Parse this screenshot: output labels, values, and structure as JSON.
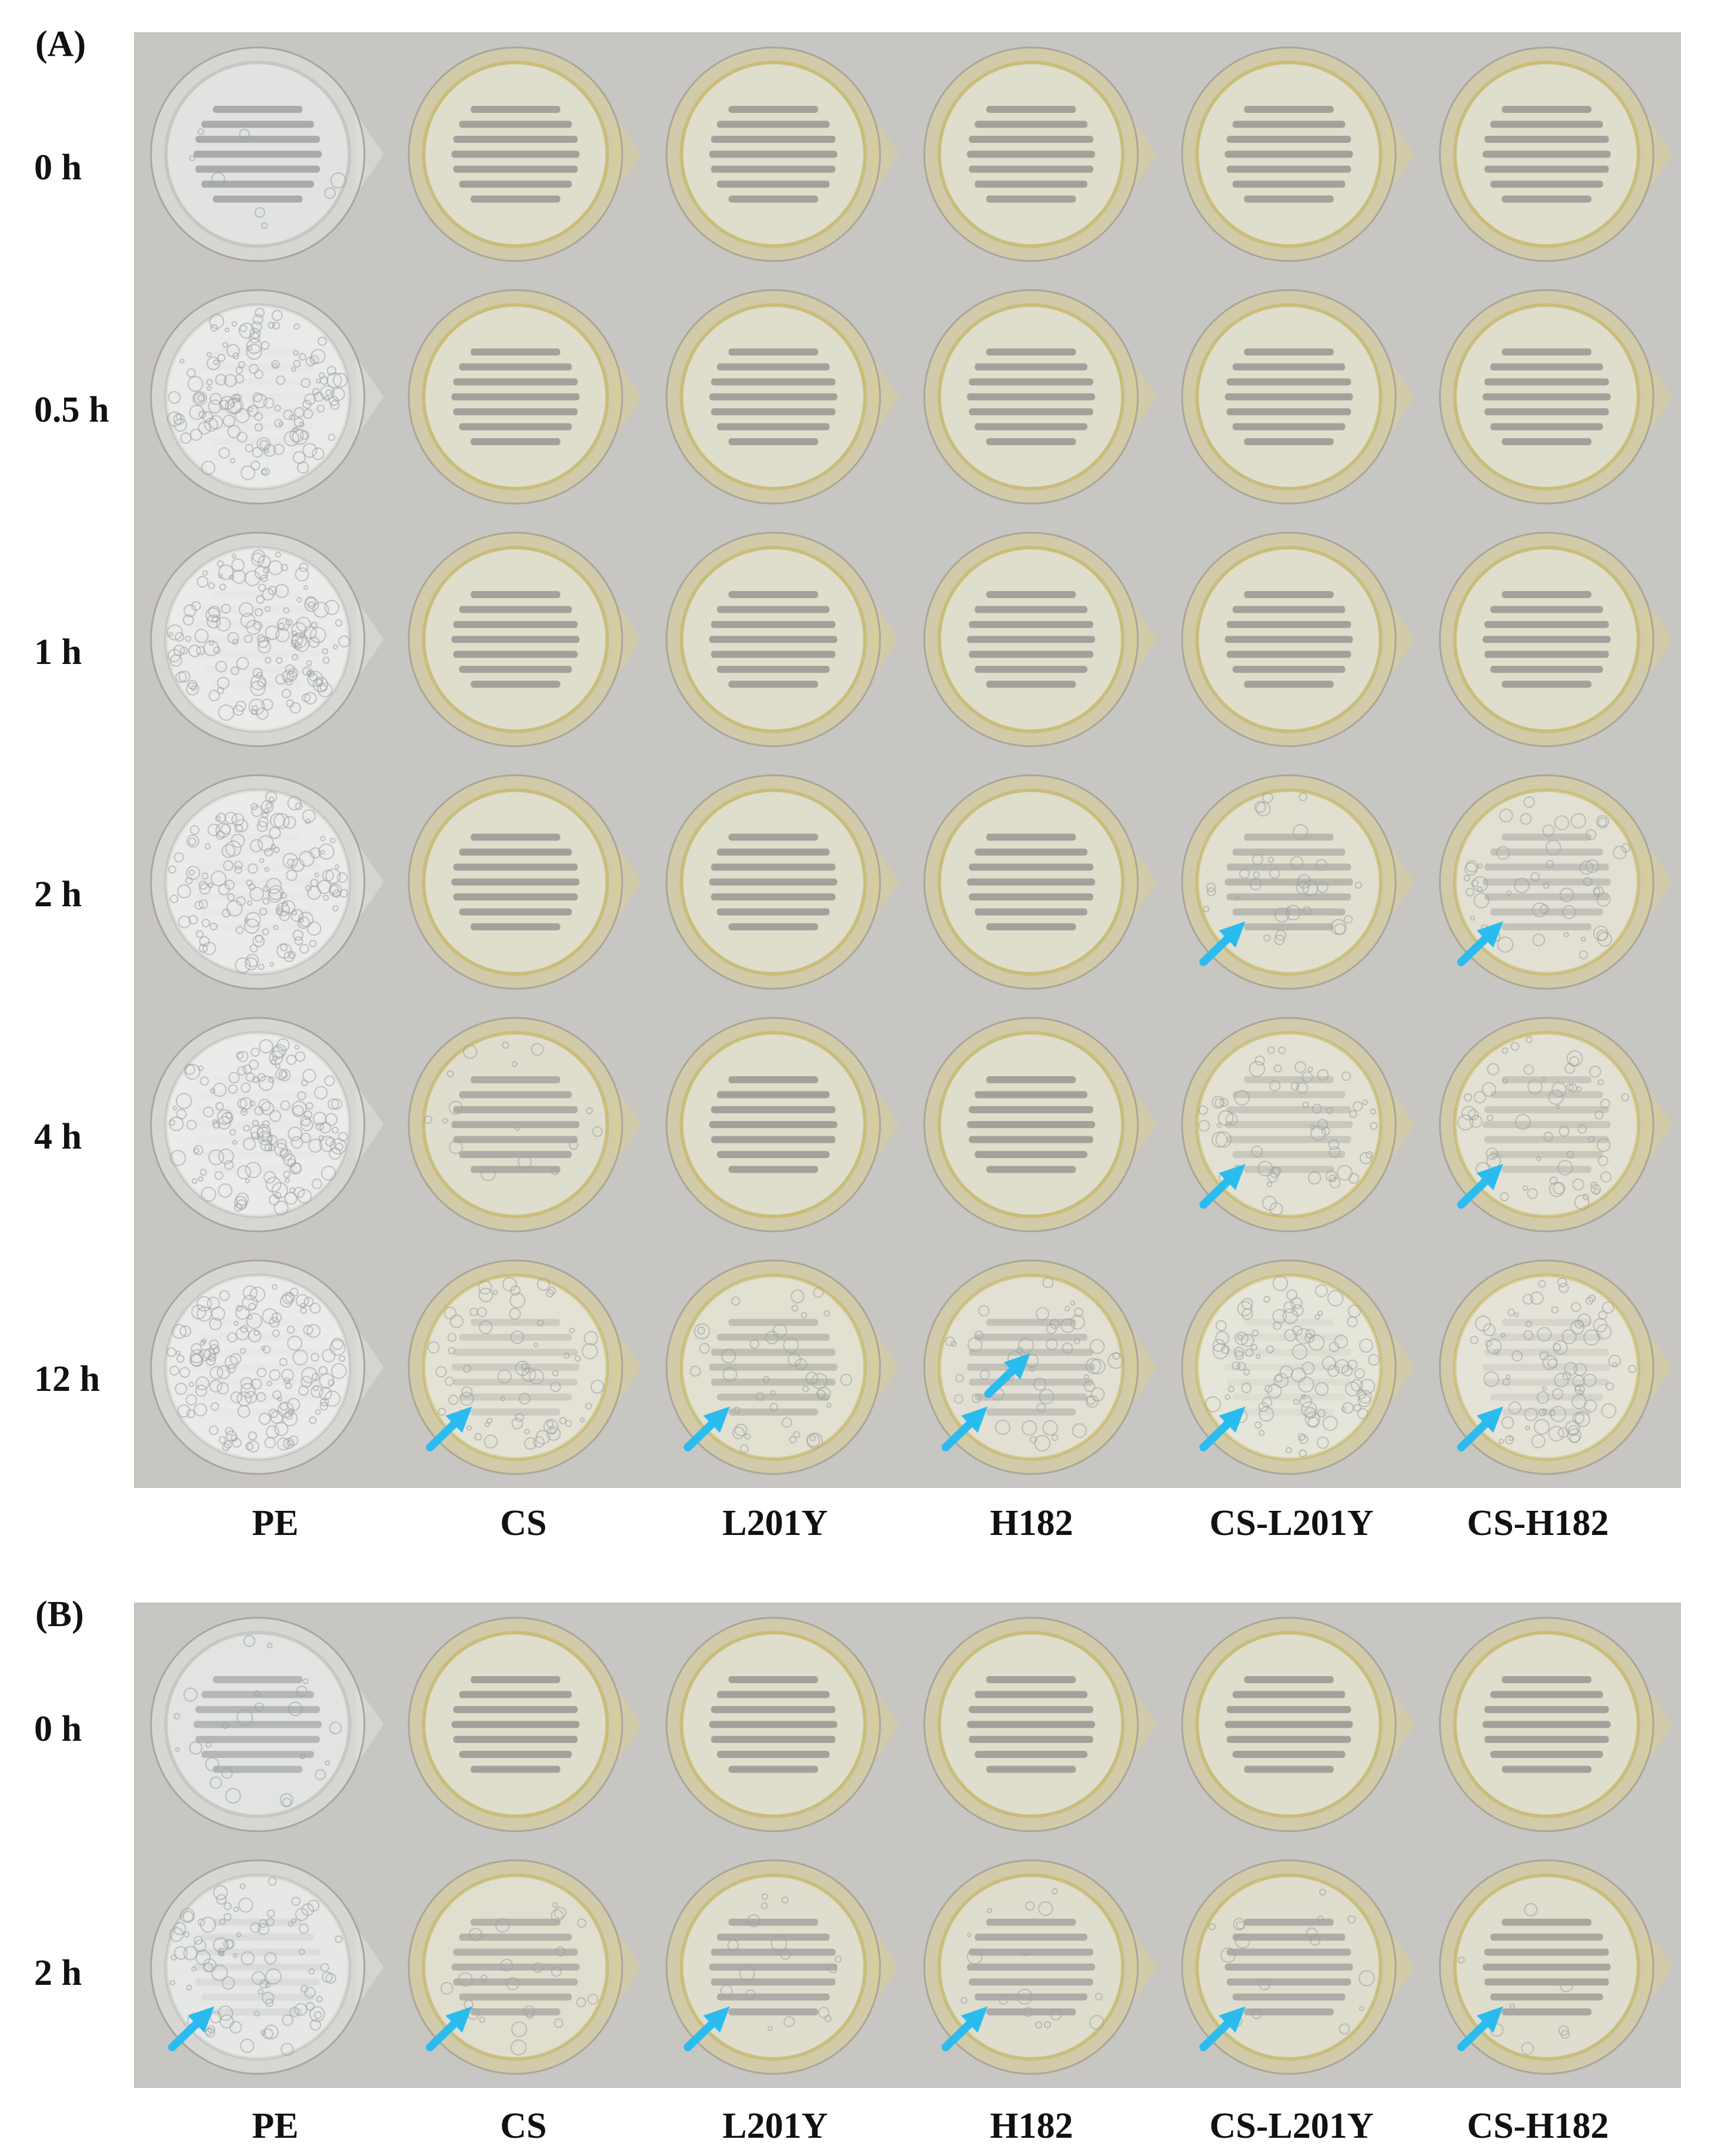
{
  "colors": {
    "background": "#c8c6c2",
    "film_edge_clear": "#dfe2de",
    "film_edge_yellow": "#d9cf97",
    "arrow": "#2bbcef",
    "label_text": "#111111"
  },
  "panels": [
    {
      "label": "(A)",
      "rows": [
        {
          "time": "0 h",
          "fog": [
            0.05,
            0,
            0,
            0,
            0,
            0
          ],
          "arrows": [
            0,
            0,
            0,
            0,
            0,
            0
          ]
        },
        {
          "time": "0.5 h",
          "fog": [
            0.85,
            0,
            0,
            0,
            0,
            0
          ],
          "arrows": [
            0,
            0,
            0,
            0,
            0,
            0
          ]
        },
        {
          "time": "1 h",
          "fog": [
            0.9,
            0,
            0,
            0,
            0,
            0
          ],
          "arrows": [
            0,
            0,
            0,
            0,
            0,
            0
          ]
        },
        {
          "time": "2 h",
          "fog": [
            0.9,
            0,
            0,
            0,
            0.2,
            0.3
          ],
          "arrows": [
            0,
            0,
            0,
            0,
            1,
            1
          ]
        },
        {
          "time": "4 h",
          "fog": [
            0.9,
            0.1,
            0,
            0,
            0.35,
            0.35
          ],
          "arrows": [
            0,
            0,
            0,
            0,
            1,
            1
          ]
        },
        {
          "time": "12 h",
          "fog": [
            0.9,
            0.4,
            0.25,
            0.3,
            0.6,
            0.5
          ],
          "arrows": [
            0,
            1,
            1,
            2,
            1,
            1
          ]
        }
      ],
      "columns": [
        "PE",
        "CS",
        "L201Y",
        "H182",
        "CS-L201Y",
        "CS-H182"
      ],
      "yellow_tint": [
        0,
        1,
        1,
        1,
        1,
        1
      ]
    },
    {
      "label": "(B)",
      "rows": [
        {
          "time": "0 h",
          "fog": [
            0.15,
            0,
            0,
            0,
            0,
            0
          ],
          "arrows": [
            0,
            0,
            0,
            0,
            0,
            0
          ]
        },
        {
          "time": "2 h",
          "fog": [
            0.55,
            0.15,
            0.1,
            0.1,
            0.1,
            0.05
          ],
          "arrows": [
            1,
            1,
            1,
            1,
            1,
            1
          ]
        }
      ],
      "columns": [
        "PE",
        "CS",
        "L201Y",
        "H182",
        "CS-L201Y",
        "CS-H182"
      ],
      "yellow_tint": [
        0,
        1,
        1,
        1,
        1,
        1
      ]
    }
  ]
}
